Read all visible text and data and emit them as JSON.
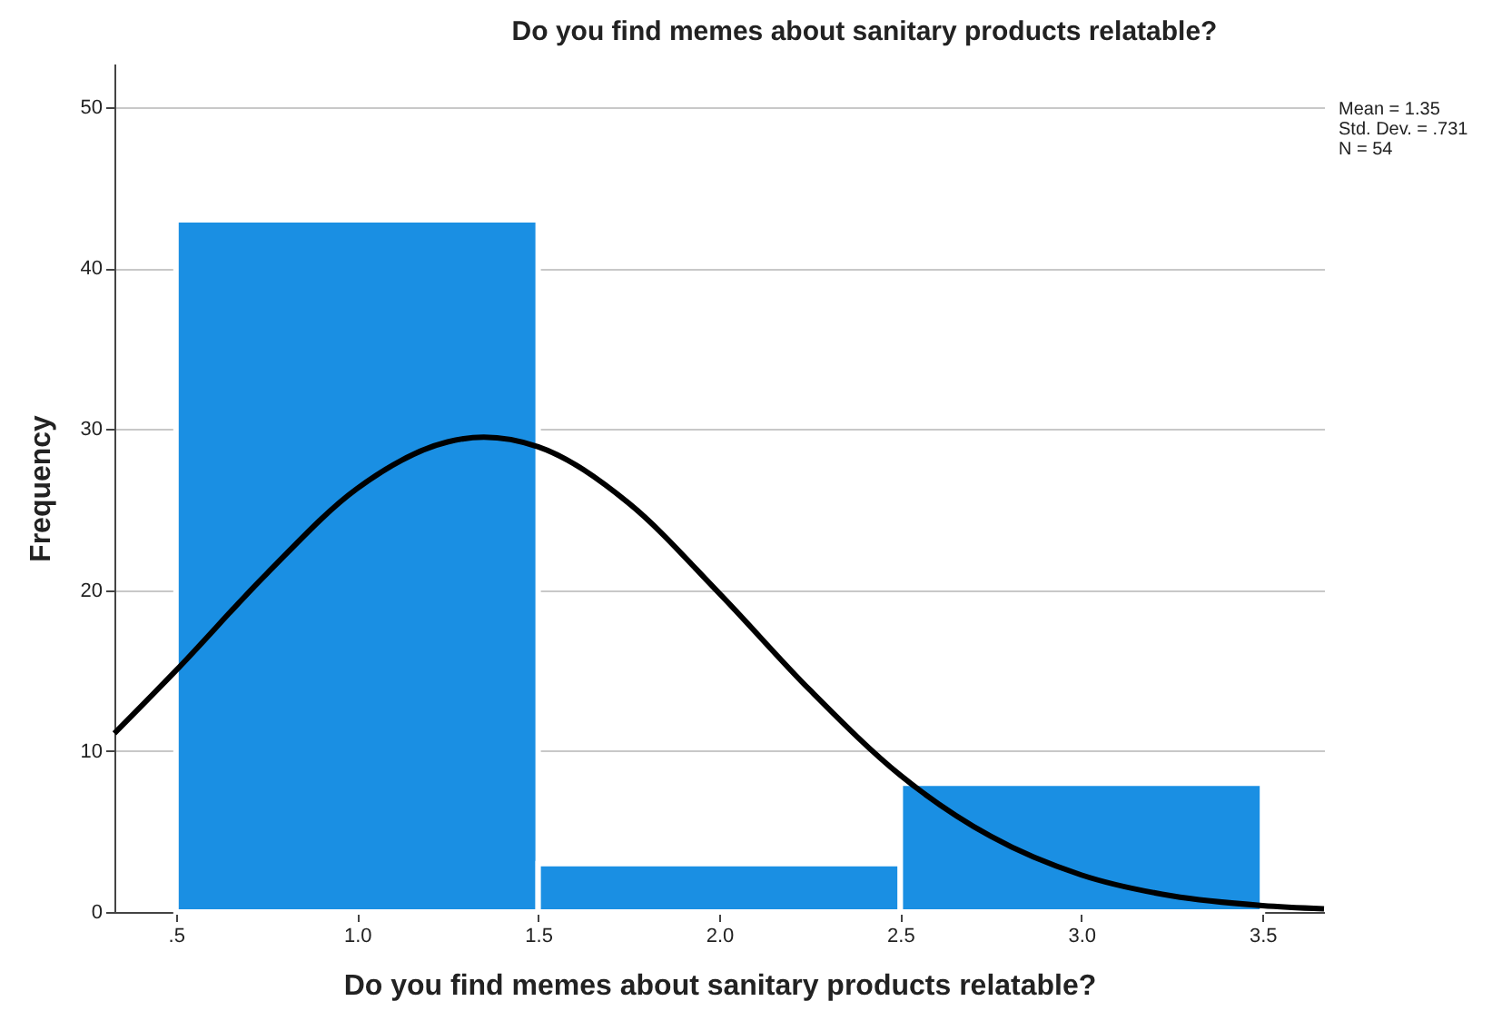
{
  "chart_data": {
    "type": "histogram",
    "title": "Do you find memes about sanitary products relatable?",
    "xlabel": "Do you find memes about sanitary products relatable?",
    "ylabel": "Frequency",
    "bins": [
      0.5,
      1.5,
      2.5,
      3.5
    ],
    "values": [
      43,
      3,
      8
    ],
    "color": "#1a8fe3",
    "series": [
      {
        "type": "line",
        "color": "#000000",
        "x": [
          0.33,
          0.5,
          0.75,
          1.0,
          1.25,
          1.35,
          1.5,
          1.75,
          2.0,
          2.25,
          2.5,
          2.75,
          3.0,
          3.25,
          3.5,
          3.67
        ],
        "values": [
          11.1,
          15.0,
          21.0,
          26.3,
          29.2,
          29.5,
          28.9,
          25.4,
          19.8,
          13.8,
          8.5,
          4.7,
          2.3,
          1.0,
          0.4,
          0.2
        ]
      }
    ],
    "xlim": [
      0.33,
      3.67
    ],
    "xticks": [
      {
        "value": 0.5,
        "label": ".5"
      },
      {
        "value": 1.0,
        "label": "1.0"
      },
      {
        "value": 1.5,
        "label": "1.5"
      },
      {
        "value": 2.0,
        "label": "2.0"
      },
      {
        "value": 2.5,
        "label": "2.5"
      },
      {
        "value": 3.0,
        "label": "3.0"
      },
      {
        "value": 3.5,
        "label": "3.5"
      }
    ],
    "ylim": [
      0,
      52.7
    ],
    "yticks": [
      0,
      10,
      20,
      30,
      40,
      50
    ],
    "grid": "y",
    "line_style": "solid",
    "annotations": [
      "Mean = 1.35",
      "Std. Dev. = .731",
      "N = 54"
    ]
  }
}
